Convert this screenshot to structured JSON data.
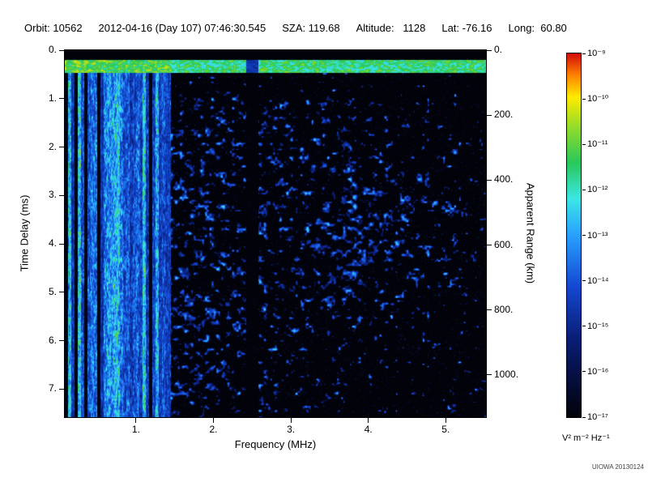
{
  "header": {
    "items": [
      "Orbit: 10562",
      "2012-04-16 (Day 107) 07:46:30.545",
      "SZA: 119.68",
      "Altitude:   1128",
      "Lat: -76.16",
      "Long:  60.80"
    ]
  },
  "chart_data": {
    "type": "heatmap",
    "description": "Radar sounder ionogram: received spectral density versus sounding frequency and echo time delay (black background, blue-cyan diffuse echoes, bright vertical plasma resonance stripes below ~1.45 MHz, bright horizontal direct-signal band near 0.3 ms, quiet vertical gap near 2.5 MHz, diffuse echo cluster near 4 MHz / 3.5 ms)",
    "xlabel": "Frequency (MHz)",
    "ylabel_left": "Time Delay (ms)",
    "ylabel_right": "Apparent Range (km)",
    "x_range_mhz": [
      0.08,
      5.52
    ],
    "y_range_ms": [
      0.0,
      7.58
    ],
    "y2_range_km": [
      0,
      1130
    ],
    "x_ticks_mhz": [
      1,
      2,
      3,
      4,
      5
    ],
    "x_tick_labels": [
      "1.",
      "2.",
      "3.",
      "4.",
      "5."
    ],
    "y_ticks_ms": [
      0,
      1,
      2,
      3,
      4,
      5,
      6,
      7
    ],
    "y_tick_labels": [
      "0.",
      "1.",
      "2.",
      "3.",
      "4.",
      "5.",
      "6.",
      "7."
    ],
    "y2_ticks_km": [
      0,
      200,
      400,
      600,
      800,
      1000
    ],
    "y2_tick_labels": [
      "0.",
      "200.",
      "400.",
      "600.",
      "800.",
      "1000."
    ],
    "metadata": {
      "orbit": "10562",
      "date": "2012-04-16",
      "day_of_year": "107",
      "time": "07:46:30.545",
      "sza_deg": "119.68",
      "altitude": "1128",
      "lat_deg": "-76.16",
      "long_deg": "60.80"
    },
    "colorbar": {
      "unit": "V² m⁻² Hz⁻¹",
      "scale": "log",
      "max": 1e-09,
      "min": 1e-17,
      "tick_labels": [
        "10⁻⁹",
        "10⁻¹⁰",
        "10⁻¹¹",
        "10⁻¹²",
        "10⁻¹³",
        "10⁻¹⁴",
        "10⁻¹⁵",
        "10⁻¹⁶",
        "10⁻¹⁷"
      ]
    },
    "colormap": [
      [
        0.0,
        "#02030a"
      ],
      [
        0.1,
        "#050d3a"
      ],
      [
        0.22,
        "#0a1e78"
      ],
      [
        0.36,
        "#1448d2"
      ],
      [
        0.5,
        "#28a0ff"
      ],
      [
        0.6,
        "#3ce6e6"
      ],
      [
        0.7,
        "#28c85a"
      ],
      [
        0.8,
        "#96dc28"
      ],
      [
        0.88,
        "#ffeb00"
      ],
      [
        0.94,
        "#ff8200"
      ],
      [
        1.0,
        "#d20a0a"
      ]
    ],
    "features": {
      "noise_seed": 20130124,
      "background": "black",
      "direct_signal_band_ms": [
        0.2,
        0.47
      ],
      "plasma_resonance_stripes_below_mhz": 1.45,
      "quiet_gap_mhz": [
        2.42,
        2.58
      ],
      "diffuse_echo_cluster": {
        "center_mhz": 4.0,
        "center_ms": 3.6,
        "sigma_mhz": 1.0,
        "sigma_ms": 2.2,
        "amplitude": 0.6
      }
    }
  },
  "credit": "UIOWA 20130124"
}
